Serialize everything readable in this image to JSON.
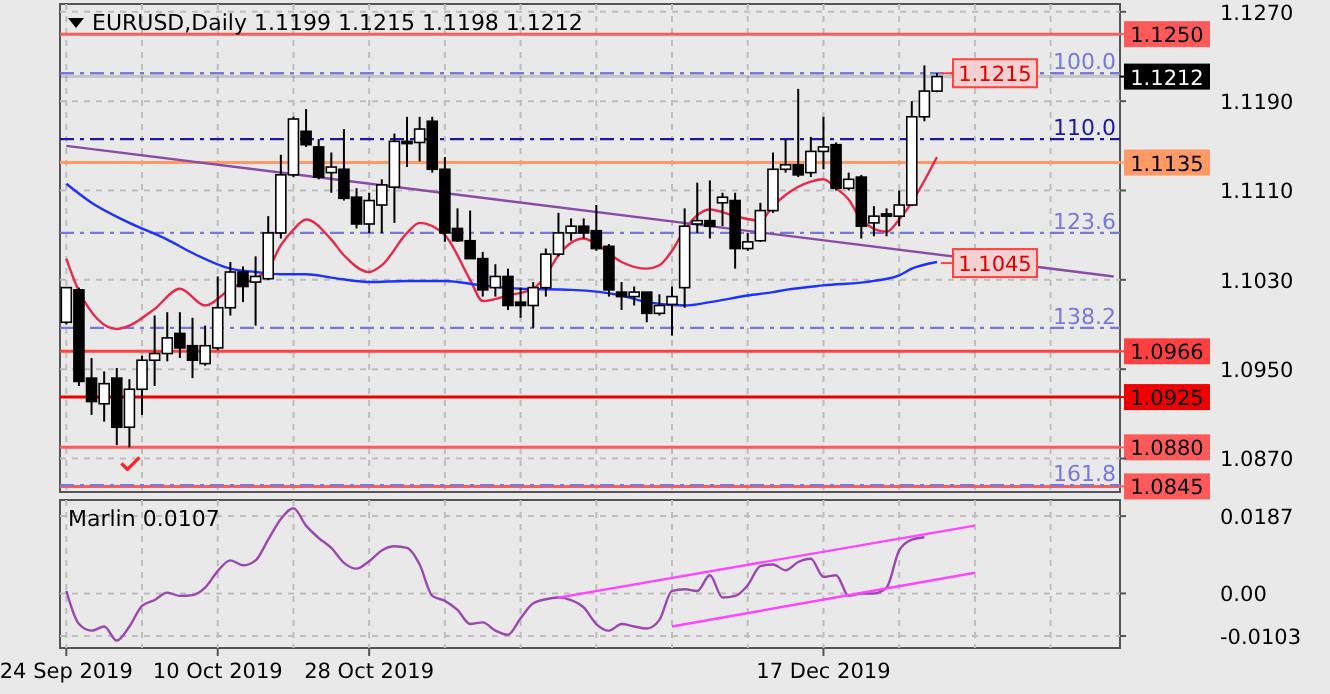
{
  "chart_data": [
    {
      "type": "candlestick",
      "title": "EURUSD,Daily 1.1199 1.1215 1.1198 1.1212",
      "categories": [
        null,
        null,
        null,
        null,
        null,
        null,
        null,
        null,
        null,
        null,
        null,
        null,
        null,
        null,
        null,
        null,
        null,
        null,
        null,
        null,
        null,
        null,
        null,
        null,
        null,
        null,
        null,
        null,
        null,
        null,
        null,
        null,
        null,
        null,
        null,
        null,
        null,
        null,
        null,
        null,
        null,
        null,
        null,
        null,
        null,
        null,
        null,
        null,
        null,
        null,
        null,
        null,
        null,
        null,
        null,
        null,
        null,
        null,
        null,
        null,
        null,
        null,
        null,
        null,
        null,
        null,
        null,
        null,
        null,
        null,
        null,
        null,
        null,
        null,
        null,
        null,
        null,
        null,
        null,
        null,
        null,
        null,
        null,
        null
      ],
      "ohlc": [
        [
          1.0992,
          1.1023,
          1.099,
          1.1023
        ],
        [
          1.1021,
          1.1023,
          1.0935,
          1.0939
        ],
        [
          1.0942,
          1.096,
          1.0909,
          1.0921
        ],
        [
          1.0919,
          1.0948,
          1.0903,
          1.0937
        ],
        [
          1.0942,
          1.0951,
          1.0882,
          1.0898
        ],
        [
          1.0898,
          1.0941,
          1.088,
          1.0932
        ],
        [
          1.0932,
          1.0962,
          1.0909,
          1.0958
        ],
        [
          1.0958,
          1.0998,
          1.0935,
          1.0964
        ],
        [
          1.0964,
          1.1001,
          1.0957,
          1.0978
        ],
        [
          1.0982,
          1.1001,
          1.096,
          1.0969
        ],
        [
          1.0971,
          1.0996,
          1.0942,
          1.0958
        ],
        [
          1.0955,
          1.0989,
          1.0953,
          1.0971
        ],
        [
          1.0969,
          1.1033,
          1.0967,
          1.1005
        ],
        [
          1.1005,
          1.1046,
          1.0998,
          1.1037
        ],
        [
          1.1037,
          1.1042,
          1.101,
          1.1024
        ],
        [
          1.1028,
          1.1051,
          1.0989,
          1.1033
        ],
        [
          1.1031,
          1.1087,
          1.103,
          1.1072
        ],
        [
          1.1072,
          1.1142,
          1.1067,
          1.1124
        ],
        [
          1.1124,
          1.1176,
          1.1122,
          1.1174
        ],
        [
          1.1163,
          1.1183,
          1.1149,
          1.1151
        ],
        [
          1.1149,
          1.1156,
          1.112,
          1.1122
        ],
        [
          1.1126,
          1.1144,
          1.1108,
          1.1131
        ],
        [
          1.1129,
          1.1165,
          1.1101,
          1.1103
        ],
        [
          1.1104,
          1.1112,
          1.1076,
          1.108
        ],
        [
          1.108,
          1.1108,
          1.1072,
          1.1101
        ],
        [
          1.1097,
          1.112,
          1.1072,
          1.1115
        ],
        [
          1.1113,
          1.1161,
          1.1081,
          1.1154
        ],
        [
          1.1154,
          1.1176,
          1.1131,
          1.1152
        ],
        [
          1.1153,
          1.1176,
          1.1136,
          1.1165
        ],
        [
          1.1172,
          1.1176,
          1.1126,
          1.1129
        ],
        [
          1.1129,
          1.114,
          1.1064,
          1.1072
        ],
        [
          1.1076,
          1.1094,
          1.1064,
          1.1065
        ],
        [
          1.1065,
          1.1092,
          1.1049,
          1.1049
        ],
        [
          1.1049,
          1.1055,
          1.1015,
          1.1021
        ],
        [
          1.1023,
          1.1044,
          1.1015,
          1.1033
        ],
        [
          1.1033,
          1.104,
          1.1003,
          1.1007
        ],
        [
          1.101,
          1.1023,
          1.0996,
          1.1007
        ],
        [
          1.1007,
          1.1028,
          1.0987,
          1.1023
        ],
        [
          1.1023,
          1.1058,
          1.1015,
          1.1053
        ],
        [
          1.1053,
          1.109,
          1.1051,
          1.1072
        ],
        [
          1.1072,
          1.1085,
          1.1065,
          1.1078
        ],
        [
          1.1078,
          1.1085,
          1.1067,
          1.1072
        ],
        [
          1.1074,
          1.1097,
          1.1056,
          1.1058
        ],
        [
          1.106,
          1.1062,
          1.1015,
          1.1021
        ],
        [
          1.1019,
          1.1028,
          1.1003,
          1.1015
        ],
        [
          1.1015,
          1.1024,
          1.1007,
          1.1019
        ],
        [
          1.1019,
          1.1019,
          1.0992,
          1.1
        ],
        [
          1.1,
          1.1017,
          1.0998,
          1.1007
        ],
        [
          1.1008,
          1.1024,
          1.098,
          1.1015
        ],
        [
          1.1023,
          1.1094,
          1.1005,
          1.1078
        ],
        [
          1.108,
          1.1117,
          1.1072,
          1.1083
        ],
        [
          1.1083,
          1.1119,
          1.1067,
          1.1078
        ],
        [
          1.1099,
          1.1108,
          1.1078,
          1.1104
        ],
        [
          1.1101,
          1.1108,
          1.104,
          1.1058
        ],
        [
          1.1058,
          1.1072,
          1.1056,
          1.1064
        ],
        [
          1.1065,
          1.1099,
          1.1064,
          1.1092
        ],
        [
          1.1092,
          1.1144,
          1.109,
          1.1129
        ],
        [
          1.1129,
          1.1156,
          1.1126,
          1.1133
        ],
        [
          1.1133,
          1.1201,
          1.1122,
          1.1124
        ],
        [
          1.1126,
          1.1158,
          1.1122,
          1.1145
        ],
        [
          1.1145,
          1.1176,
          1.1129,
          1.1149
        ],
        [
          1.1151,
          1.1153,
          1.111,
          1.1112
        ],
        [
          1.1112,
          1.1126,
          1.111,
          1.112
        ],
        [
          1.1122,
          1.1124,
          1.1067,
          1.1078
        ],
        [
          1.1081,
          1.1096,
          1.1069,
          1.1087
        ],
        [
          1.1089,
          1.1094,
          1.1069,
          1.1087
        ],
        [
          1.1087,
          1.111,
          1.1078,
          1.1097
        ],
        [
          1.1097,
          1.119,
          1.1096,
          1.1176
        ],
        [
          1.1176,
          1.1222,
          1.1172,
          1.1199
        ],
        [
          1.1199,
          1.1215,
          1.1198,
          1.1212
        ],
        null,
        null,
        null,
        null,
        null,
        null,
        null,
        null,
        null,
        null,
        null,
        null,
        null,
        null
      ],
      "series": [
        {
          "type": "line",
          "color": "#e8284a",
          "values": [
            1.1049,
            1.102,
            null,
            null,
            1.0986,
            1.0989,
            null,
            1.1004,
            null,
            1.1022,
            null,
            1.1007,
            null,
            1.1022,
            null,
            null,
            1.104,
            1.1061,
            1.1075,
            1.1084,
            null,
            1.1066,
            1.1052,
            null,
            1.1037,
            1.1043,
            null,
            1.1072,
            1.1081,
            null,
            1.107,
            null,
            1.103,
            1.1011,
            null,
            1.1016,
            null,
            1.1022,
            1.1034,
            1.1052,
            null,
            1.1067,
            1.1062,
            null,
            1.1046,
            null,
            1.104,
            1.1043,
            1.1056,
            1.1075,
            null,
            1.1093,
            null,
            1.1087,
            null,
            1.1083,
            1.1096,
            1.1106,
            null,
            1.1118,
            1.112,
            1.1112,
            1.1102,
            1.1084,
            null,
            1.1073,
            1.1084,
            null,
            null,
            1.114,
            null,
            null,
            null,
            null,
            null,
            null,
            null,
            null,
            null,
            null,
            null,
            null,
            null,
            null
          ]
        },
        {
          "type": "line",
          "color": "#1e32ff",
          "values": [
            1.1116,
            null,
            1.1099,
            null,
            null,
            1.1081,
            null,
            null,
            1.1066,
            null,
            1.1054,
            null,
            null,
            1.104,
            null,
            1.1037,
            null,
            1.1035,
            null,
            1.1035,
            null,
            1.1032,
            null,
            null,
            1.1028,
            null,
            null,
            1.1029,
            null,
            null,
            1.1029,
            null,
            null,
            1.1025,
            null,
            null,
            1.1022,
            null,
            null,
            null,
            1.1021,
            null,
            null,
            null,
            1.1016,
            null,
            1.101,
            null,
            null,
            1.1007,
            null,
            1.101,
            null,
            null,
            1.1016,
            null,
            1.1019,
            1.1021,
            null,
            null,
            1.1025,
            null,
            null,
            null,
            1.1029,
            null,
            1.1034,
            1.104,
            null,
            1.1046,
            null,
            null,
            null,
            null,
            null,
            null,
            null,
            null,
            null,
            null,
            null,
            null,
            null,
            null
          ]
        },
        {
          "type": "line",
          "color": "#8a4aa8",
          "values": [
            1.115,
            null,
            null,
            null,
            null,
            null,
            null,
            null,
            null,
            null,
            null,
            null,
            null,
            null,
            null,
            null,
            null,
            null,
            null,
            null,
            null,
            null,
            null,
            null,
            null,
            null,
            null,
            null,
            null,
            null,
            null,
            null,
            null,
            null,
            null,
            null,
            null,
            null,
            null,
            null,
            null,
            null,
            null,
            null,
            null,
            null,
            null,
            null,
            null,
            null,
            null,
            null,
            null,
            null,
            null,
            null,
            null,
            null,
            null,
            null,
            null,
            null,
            null,
            null,
            null,
            null,
            null,
            null,
            null,
            null,
            null,
            null,
            null,
            null,
            null,
            null,
            null,
            null,
            null,
            null,
            null,
            null,
            null,
            1.1033
          ]
        }
      ],
      "ylim": [
        1.084,
        1.1277
      ],
      "yticks": [
        {
          "value": 1.127,
          "label": "1.1270"
        },
        {
          "value": 1.119,
          "label": "1.1190"
        },
        {
          "value": 1.111,
          "label": "1.1110"
        },
        {
          "value": 1.103,
          "label": "1.1030"
        },
        {
          "value": 1.095,
          "label": "1.0950"
        },
        {
          "value": 1.087,
          "label": "1.0870"
        }
      ],
      "grid": true,
      "tick_labels": "y",
      "ref_lines": [
        {
          "axis": "y",
          "value": 1.125,
          "label": "1.1250",
          "color": "#ff5a5a"
        },
        {
          "axis": "y",
          "value": 1.1212,
          "label": "1.1212",
          "color": "#000000"
        },
        {
          "axis": "y",
          "value": 1.1135,
          "label": "1.1135",
          "color": "#ff9966"
        },
        {
          "axis": "y",
          "value": 1.0966,
          "label": "1.0966",
          "color": "#ff4040"
        },
        {
          "axis": "y",
          "value": 1.0925,
          "label": "1.0925",
          "color": "#ee0000"
        },
        {
          "axis": "y",
          "value": 1.088,
          "label": "1.0880",
          "color": "#ff5a5a"
        },
        {
          "axis": "y",
          "value": 1.0845,
          "label": "1.0845",
          "color": "#ff5a5a"
        },
        {
          "axis": "y",
          "value": 1.1215,
          "color": "#7878d8",
          "line_style": "dashed"
        },
        {
          "axis": "y",
          "value": 1.1156,
          "color": "#1a1aa0",
          "line_style": "dashed"
        },
        {
          "axis": "y",
          "value": 1.1072,
          "color": "#7878d8",
          "line_style": "dashed"
        },
        {
          "axis": "y",
          "value": 1.0987,
          "color": "#7878d8",
          "line_style": "dashed"
        },
        {
          "axis": "y",
          "value": 1.0846,
          "color": "#7878d8",
          "line_style": "dashed"
        }
      ],
      "annotations": [
        {
          "text": "1.1215",
          "y": 1.1215
        },
        {
          "text": "1.1045",
          "y": 1.1045
        },
        {
          "text": "100.0",
          "y": 1.1215
        },
        {
          "text": "110.0",
          "y": 1.1156
        },
        {
          "text": "123.6",
          "y": 1.1072
        },
        {
          "text": "138.2",
          "y": 1.0987
        },
        {
          "text": "161.8",
          "y": 1.0846
        }
      ]
    },
    {
      "type": "line",
      "title": "Marlin 0.0107",
      "categories": [
        "24 Sep 2019",
        null,
        null,
        null,
        null,
        null,
        null,
        null,
        null,
        null,
        null,
        null,
        "10 Oct 2019",
        null,
        null,
        null,
        null,
        null,
        null,
        null,
        null,
        null,
        null,
        null,
        "28 Oct 2019",
        null,
        null,
        null,
        null,
        null,
        null,
        null,
        null,
        null,
        null,
        null,
        null,
        null,
        null,
        null,
        null,
        null,
        null,
        null,
        null,
        null,
        null,
        null,
        null,
        null,
        null,
        null,
        null,
        null,
        null,
        null,
        null,
        null,
        null,
        null,
        "17 Dec 2019",
        null,
        null,
        null,
        null,
        null,
        null,
        null,
        null,
        null,
        null,
        null,
        null,
        null,
        null,
        null,
        null,
        null,
        null,
        null,
        null,
        null,
        null,
        null
      ],
      "series": [
        {
          "color": "#9a48b0",
          "values": [
            0.0006,
            -0.0074,
            -0.009,
            -0.008,
            -0.0114,
            -0.008,
            -0.003,
            -0.0016,
            0.0002,
            -0.0006,
            -0.0004,
            0.0014,
            0.0054,
            0.008,
            0.0068,
            0.008,
            0.013,
            0.018,
            0.0206,
            0.0164,
            0.0134,
            0.011,
            0.0074,
            0.006,
            0.0078,
            0.0104,
            0.0114,
            0.011,
            0.007,
            -0.0006,
            -0.0018,
            -0.004,
            -0.0074,
            -0.007,
            -0.009,
            -0.01,
            -0.006,
            -0.0024,
            -0.0014,
            -0.001,
            -0.0016,
            -0.0034,
            -0.0074,
            -0.009,
            -0.0074,
            -0.008,
            -0.0085,
            -0.0064,
            0.0006,
            0.001,
            0.0006,
            0.0044,
            -0.001,
            -0.0006,
            0.002,
            0.0066,
            0.007,
            0.0056,
            0.0076,
            0.0084,
            0.004,
            0.0044,
            -0.0006,
            0.0,
            0.0,
            0.0014,
            0.0104,
            0.013,
            0.0136,
            null,
            null,
            null,
            null,
            null,
            null,
            null,
            null,
            null,
            null,
            null,
            null,
            null,
            null,
            null
          ]
        },
        {
          "color": "#ff44ff",
          "values": [
            null,
            null,
            null,
            null,
            null,
            null,
            null,
            null,
            null,
            null,
            null,
            null,
            null,
            null,
            null,
            null,
            null,
            null,
            null,
            null,
            null,
            null,
            null,
            null,
            null,
            null,
            null,
            null,
            null,
            null,
            null,
            null,
            null,
            null,
            null,
            null,
            null,
            null,
            null,
            -0.001,
            null,
            null,
            null,
            null,
            null,
            null,
            null,
            null,
            null,
            null,
            null,
            null,
            null,
            null,
            null,
            null,
            null,
            null,
            null,
            null,
            null,
            null,
            null,
            null,
            null,
            null,
            null,
            null,
            null,
            null,
            null,
            null,
            0.0164,
            null,
            null,
            null,
            null,
            null,
            null,
            null,
            null,
            null,
            null,
            null
          ]
        },
        {
          "color": "#ff44ff",
          "values": [
            null,
            null,
            null,
            null,
            null,
            null,
            null,
            null,
            null,
            null,
            null,
            null,
            null,
            null,
            null,
            null,
            null,
            null,
            null,
            null,
            null,
            null,
            null,
            null,
            null,
            null,
            null,
            null,
            null,
            null,
            null,
            null,
            null,
            null,
            null,
            null,
            null,
            null,
            null,
            null,
            null,
            null,
            null,
            null,
            null,
            null,
            null,
            null,
            -0.008,
            null,
            null,
            null,
            null,
            null,
            null,
            null,
            null,
            null,
            null,
            null,
            null,
            null,
            null,
            null,
            null,
            null,
            null,
            null,
            null,
            null,
            null,
            null,
            0.005,
            null,
            null,
            null,
            null,
            null,
            null,
            null,
            null,
            null,
            null,
            null
          ]
        }
      ],
      "ylim": [
        -0.0132,
        0.0226
      ],
      "yticks": [
        0.0187,
        {
          "value": 0,
          "label": "0.00"
        },
        -0.0103
      ],
      "grid": true
    }
  ]
}
